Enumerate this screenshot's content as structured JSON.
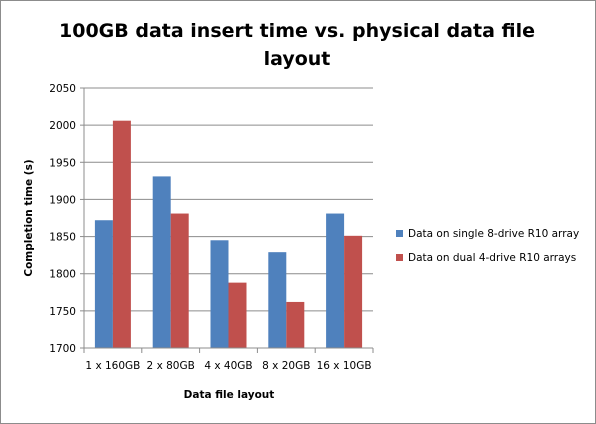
{
  "chart_data": {
    "type": "bar",
    "title_line1": "100GB data insert time vs. physical data file",
    "title_line2": "layout",
    "xlabel": "Data file layout",
    "ylabel": "Completion time (s)",
    "ylim": [
      1700,
      2050
    ],
    "yticks": [
      1700,
      1750,
      1800,
      1850,
      1900,
      1950,
      2000,
      2050
    ],
    "grid": true,
    "legend_position": "right",
    "categories": [
      "1 x 160GB",
      "2 x 80GB",
      "4 x 40GB",
      "8 x 20GB",
      "16 x 10GB"
    ],
    "series": [
      {
        "name": "Data on single 8-drive R10 array",
        "color": "#4f81bd",
        "values": [
          1872,
          1931,
          1845,
          1829,
          1881
        ]
      },
      {
        "name": "Data on dual 4-drive R10 arrays",
        "color": "#c0504d",
        "values": [
          2006,
          1881,
          1788,
          1762,
          1851
        ]
      }
    ]
  }
}
